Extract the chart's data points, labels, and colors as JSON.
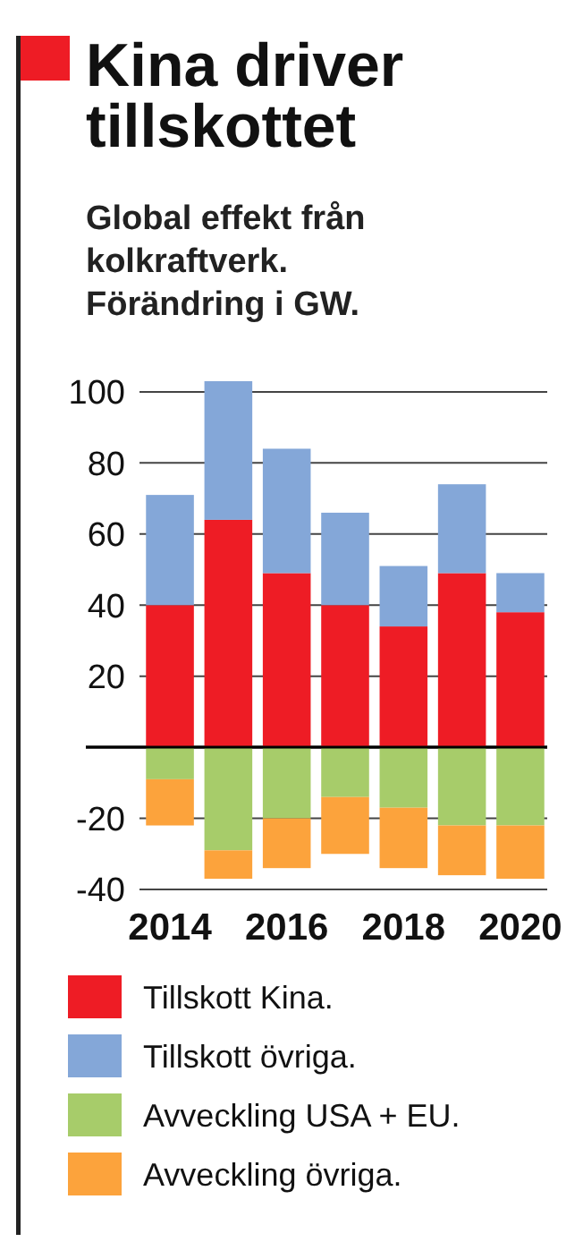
{
  "chart_data": {
    "type": "bar",
    "title": "Kina driver tillskottet",
    "subtitle": "Global effekt från kolkraftverk. Förändring i GW.",
    "categories": [
      "2014",
      null,
      "2016",
      null,
      "2018",
      null,
      "2020"
    ],
    "stacked": true,
    "series": [
      {
        "name": "Tillskott Kina.",
        "color": "#ee1c25",
        "values": [
          40,
          64,
          49,
          40,
          34,
          49,
          38
        ]
      },
      {
        "name": "Tillskott övriga.",
        "color": "#84a7d8",
        "values": [
          31,
          39,
          35,
          26,
          17,
          25,
          11
        ]
      },
      {
        "name": "Avveckling USA + EU.",
        "color": "#a7cc6a",
        "values": [
          -9,
          -29,
          -20,
          -14,
          -17,
          -22,
          -22
        ]
      },
      {
        "name": "Avveckling övriga.",
        "color": "#fca33c",
        "values": [
          -13,
          -8,
          -14,
          -16,
          -17,
          -14,
          -15
        ]
      }
    ],
    "ylim": [
      -40,
      103
    ],
    "yticks": [
      -40,
      -20,
      {
        "value": 0,
        "label": null
      },
      20,
      40,
      60,
      80,
      100
    ],
    "grid": "y",
    "legend": "bottom"
  }
}
